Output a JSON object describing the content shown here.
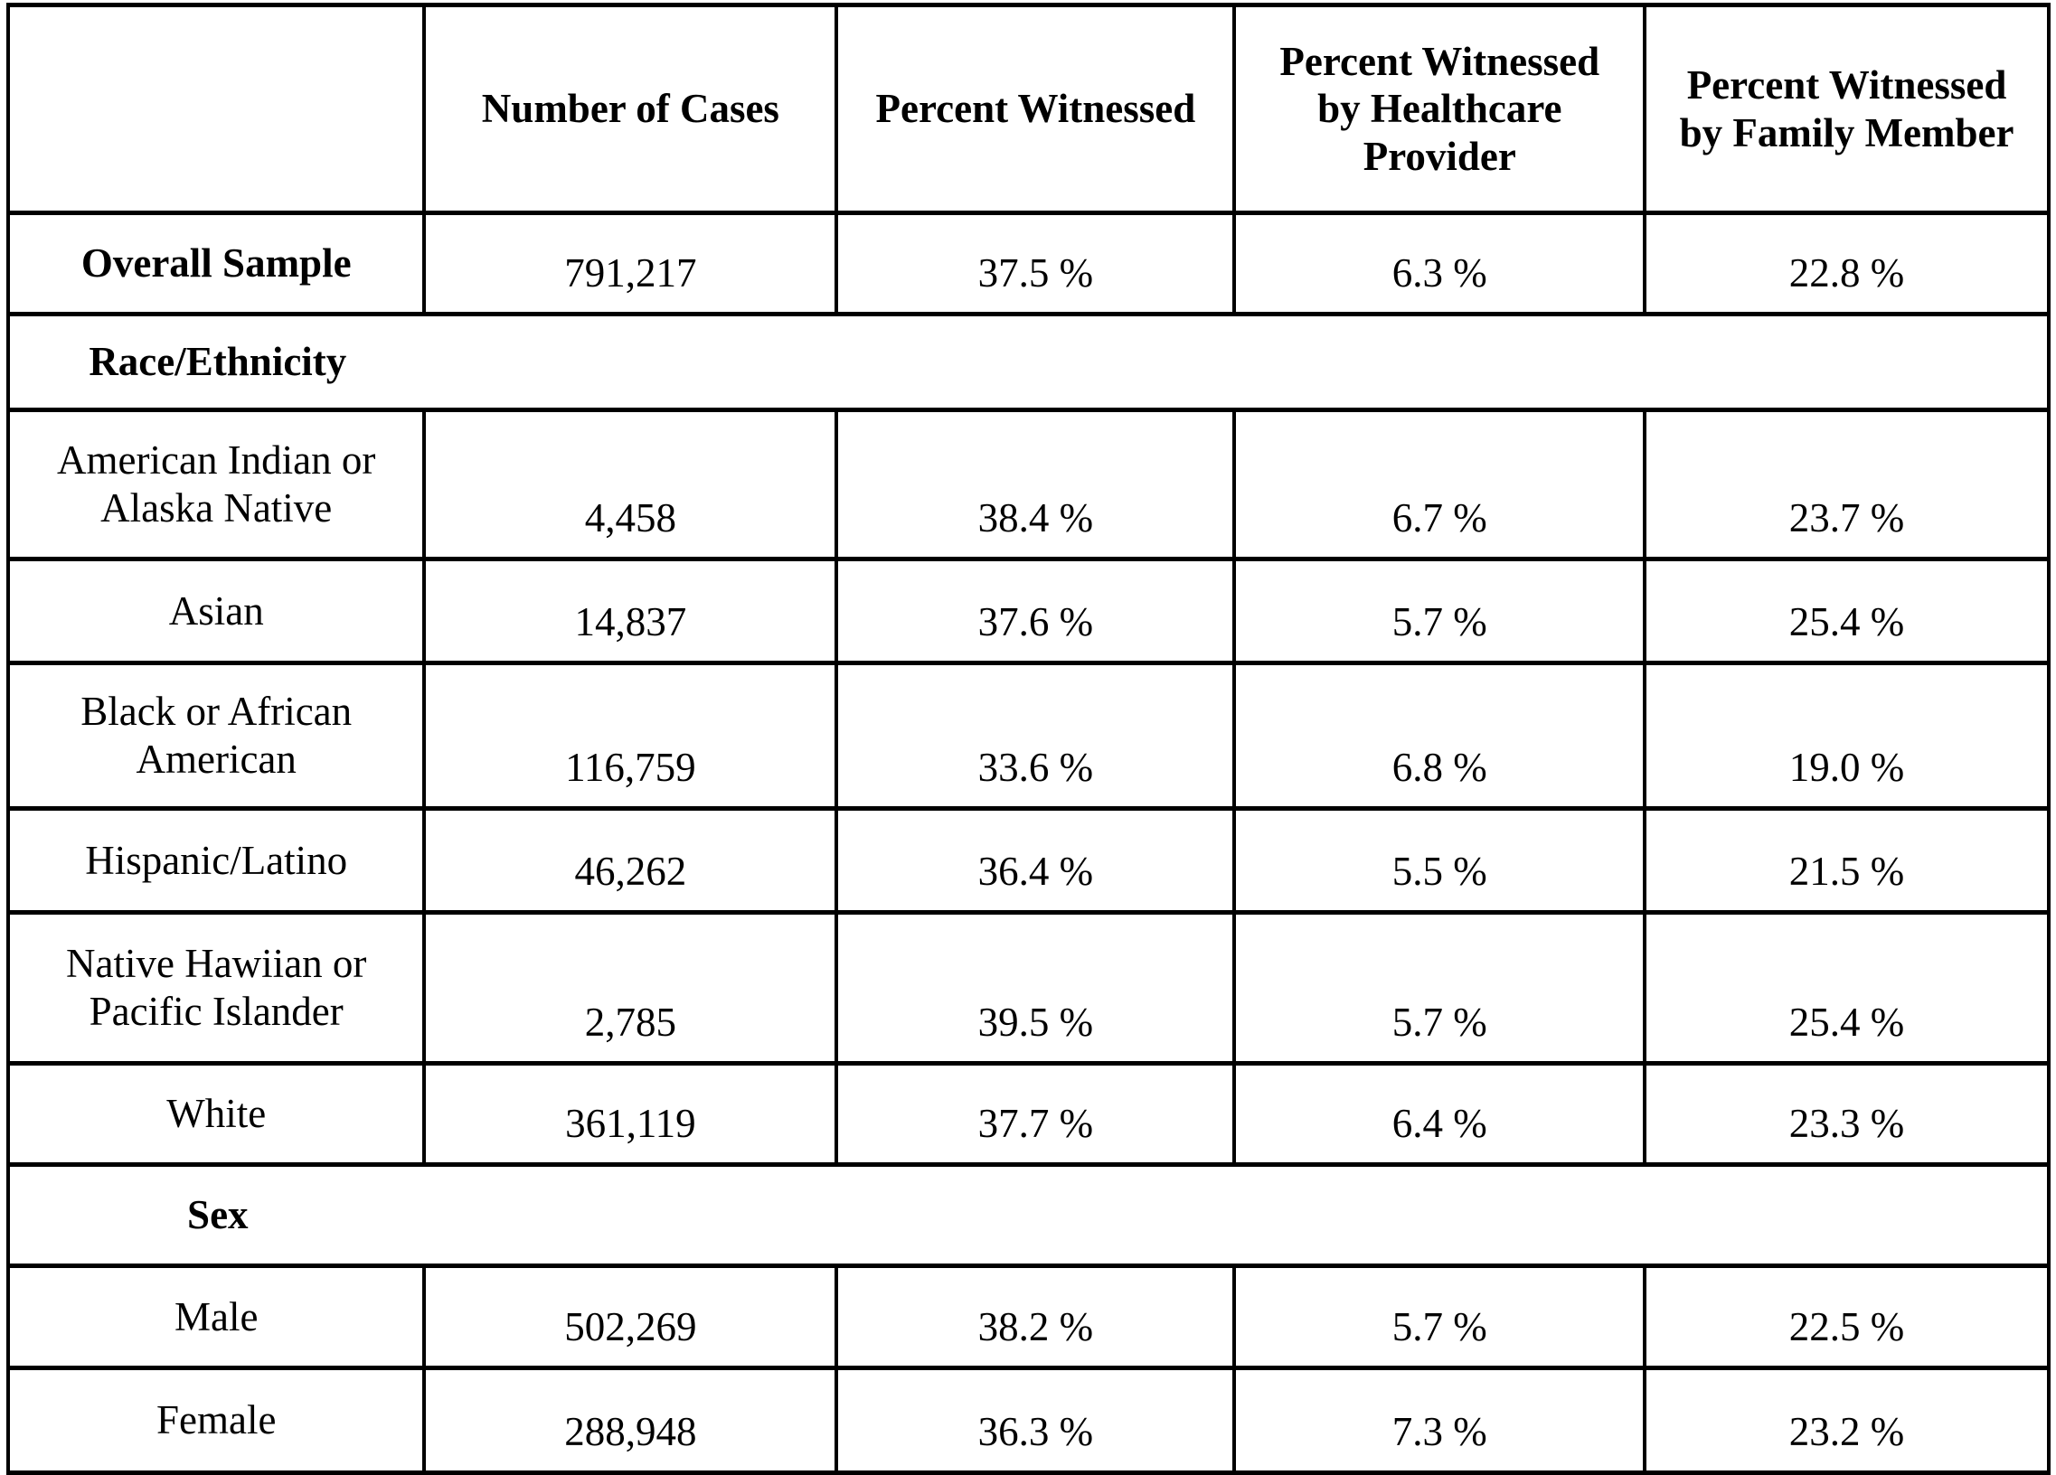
{
  "table": {
    "columns": [
      {
        "lines": [
          ""
        ]
      },
      {
        "lines": [
          "Number of Cases"
        ]
      },
      {
        "lines": [
          "Percent Witnessed"
        ]
      },
      {
        "lines": [
          "Percent Witnessed",
          "by Healthcare",
          "Provider"
        ]
      },
      {
        "lines": [
          "Percent Witnessed",
          "by Family Member"
        ]
      }
    ],
    "rows": [
      {
        "type": "data",
        "label_lines": [
          "Overall Sample"
        ],
        "bold": true,
        "values": [
          "791,217",
          "37.5 %",
          "6.3 %",
          "22.8 %"
        ]
      },
      {
        "type": "section",
        "label": "Race/Ethnicity"
      },
      {
        "type": "data",
        "label_lines": [
          "American Indian or",
          "Alaska Native"
        ],
        "values": [
          "4,458",
          "38.4 %",
          "6.7 %",
          "23.7 %"
        ]
      },
      {
        "type": "data",
        "label_lines": [
          "Asian"
        ],
        "values": [
          "14,837",
          "37.6 %",
          "5.7 %",
          "25.4 %"
        ]
      },
      {
        "type": "data",
        "label_lines": [
          "Black or African",
          "American"
        ],
        "values": [
          "116,759",
          "33.6 %",
          "6.8 %",
          "19.0 %"
        ]
      },
      {
        "type": "data",
        "label_lines": [
          "Hispanic/Latino"
        ],
        "values": [
          "46,262",
          "36.4 %",
          "5.5 %",
          "21.5 %"
        ]
      },
      {
        "type": "data",
        "label_lines": [
          "Native Hawiian or",
          "Pacific Islander"
        ],
        "values": [
          "2,785",
          "39.5 %",
          "5.7 %",
          "25.4 %"
        ]
      },
      {
        "type": "data",
        "label_lines": [
          "White"
        ],
        "values": [
          "361,119",
          "37.7 %",
          "6.4 %",
          "23.3 %"
        ]
      },
      {
        "type": "section",
        "label": "Sex"
      },
      {
        "type": "data",
        "label_lines": [
          "Male"
        ],
        "values": [
          "502,269",
          "38.2 %",
          "5.7 %",
          "22.5 %"
        ]
      },
      {
        "type": "data",
        "label_lines": [
          "Female"
        ],
        "values": [
          "288,948",
          "36.3 %",
          "7.3 %",
          "23.2 %"
        ]
      }
    ]
  }
}
